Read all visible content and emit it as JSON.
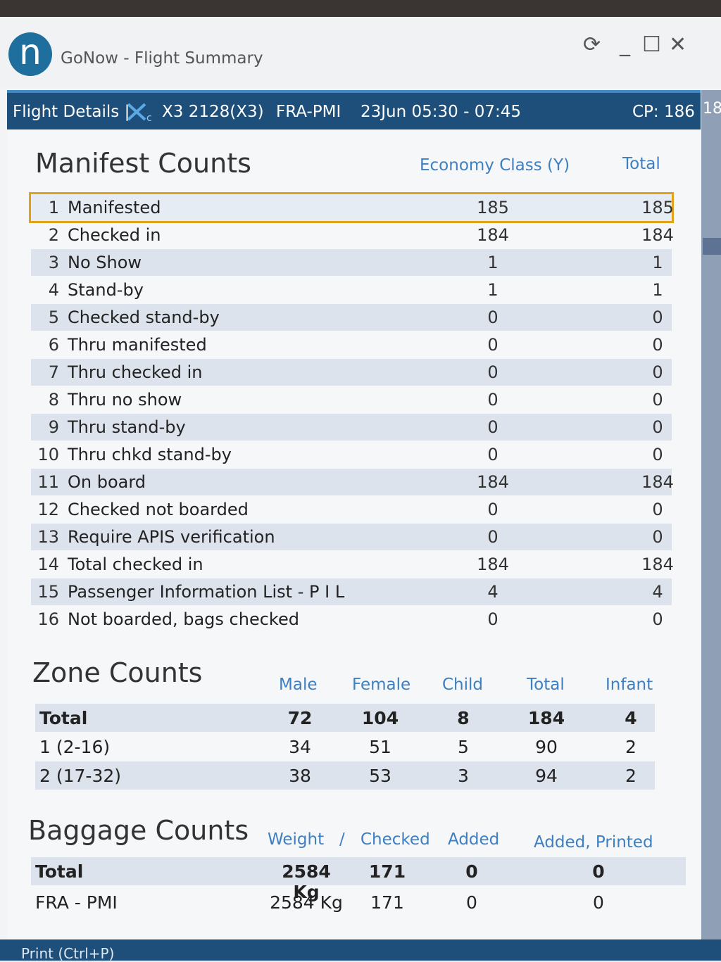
{
  "window": {
    "logo_letter": "n",
    "title": "GoNow - Flight Summary",
    "controls": [
      "⟳",
      "_",
      "☐",
      "✕"
    ]
  },
  "header": {
    "flight_details": "Flight Details |",
    "airline_code": "X3 2128(X3)",
    "route": "FRA-PMI",
    "date_time": "23Jun 05:30 - 07:45",
    "cp": "CP: 186",
    "edge_text": "18"
  },
  "manifest": {
    "title": "Manifest Counts",
    "col_economy": "Economy Class (Y)",
    "col_total": "Total",
    "rows": [
      {
        "num": "1",
        "label": "Manifested",
        "economy": "185",
        "total": "185"
      },
      {
        "num": "2",
        "label": "Checked in",
        "economy": "184",
        "total": "184"
      },
      {
        "num": "3",
        "label": "No Show",
        "economy": "1",
        "total": "1"
      },
      {
        "num": "4",
        "label": "Stand-by",
        "economy": "1",
        "total": "1"
      },
      {
        "num": "5",
        "label": "Checked stand-by",
        "economy": "0",
        "total": "0"
      },
      {
        "num": "6",
        "label": "Thru manifested",
        "economy": "0",
        "total": "0"
      },
      {
        "num": "7",
        "label": "Thru checked in",
        "economy": "0",
        "total": "0"
      },
      {
        "num": "8",
        "label": "Thru no show",
        "economy": "0",
        "total": "0"
      },
      {
        "num": "9",
        "label": "Thru stand-by",
        "economy": "0",
        "total": "0"
      },
      {
        "num": "10",
        "label": "Thru chkd stand-by",
        "economy": "0",
        "total": "0"
      },
      {
        "num": "11",
        "label": "On board",
        "economy": "184",
        "total": "184"
      },
      {
        "num": "12",
        "label": "Checked not boarded",
        "economy": "0",
        "total": "0"
      },
      {
        "num": "13",
        "label": "Require APIS verification",
        "economy": "0",
        "total": "0"
      },
      {
        "num": "14",
        "label": "Total checked in",
        "economy": "184",
        "total": "184"
      },
      {
        "num": "15",
        "label": "Passenger Information List - P I L",
        "economy": "4",
        "total": "4"
      },
      {
        "num": "16",
        "label": "Not boarded, bags checked",
        "economy": "0",
        "total": "0"
      }
    ]
  },
  "zones": {
    "title": "Zone Counts",
    "headers": [
      "Male",
      "Female",
      "Child",
      "Total",
      "Infant"
    ],
    "rows": [
      {
        "label": "Total",
        "male": "72",
        "female": "104",
        "child": "8",
        "total": "184",
        "infant": "4"
      },
      {
        "label": "1 (2-16)",
        "male": "34",
        "female": "51",
        "child": "5",
        "total": "90",
        "infant": "2"
      },
      {
        "label": "2 (17-32)",
        "male": "38",
        "female": "53",
        "child": "3",
        "total": "94",
        "infant": "2"
      }
    ]
  },
  "baggage": {
    "title": "Baggage Counts",
    "headers": {
      "weight": "Weight",
      "slash": "/",
      "checked": "Checked",
      "added": "Added",
      "added_printed": "Added, Printed"
    },
    "rows": [
      {
        "label": "Total",
        "weight": "2584 Kg",
        "checked": "171",
        "added": "0",
        "added_printed": "0"
      },
      {
        "label": "FRA - PMI",
        "weight": "2584 Kg",
        "checked": "171",
        "added": "0",
        "added_printed": "0"
      }
    ]
  },
  "footer": {
    "print_label": "Print (Ctrl+P)"
  }
}
